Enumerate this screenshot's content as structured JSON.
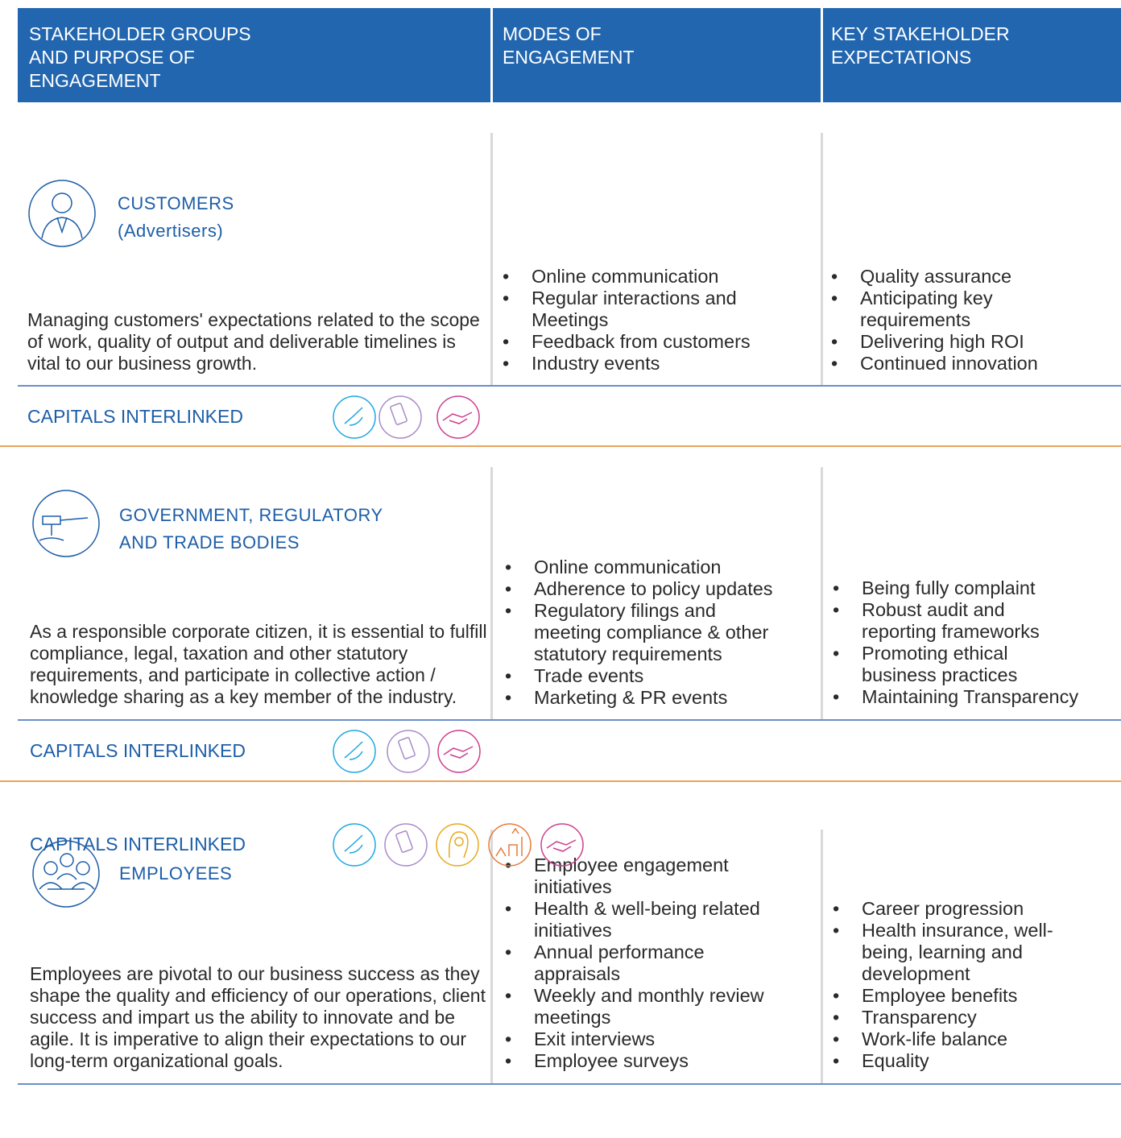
{
  "header": {
    "columns": [
      [
        "STAKEHOLDER GROUPS",
        "AND PURPOSE OF",
        "ENGAGEMENT"
      ],
      [
        "MODES OF",
        "ENGAGEMENT"
      ],
      [
        "KEY STAKEHOLDER",
        "EXPECTATIONS"
      ]
    ]
  },
  "groups": [
    {
      "title_lines": [
        "CUSTOMERS",
        "(Advertisers)"
      ],
      "description": "Managing customers' expectations related to the scope of work, quality of output and deliverable timelines is vital to our business growth.",
      "modes": [
        "Online communication",
        "Regular interactions and Meetings",
        "Feedback from customers",
        "Industry events"
      ],
      "expectations": [
        "Quality assurance",
        "Anticipating key requirements",
        "Delivering high ROI",
        "Continued innovation"
      ],
      "capitals_label": "CAPITALS INTERLINKED"
    },
    {
      "title_lines": [
        "GOVERNMENT, REGULATORY",
        "AND TRADE BODIES"
      ],
      "description": "As a responsible corporate citizen, it is essential to fulfill compliance, legal, taxation and other statutory requirements, and participate in collective action / knowledge sharing as a key member of the industry.",
      "modes": [
        "Online communication",
        "Adherence to policy updates",
        "Regulatory filings and meeting compliance & other statutory requirements",
        "Trade events",
        "Marketing & PR events"
      ],
      "expectations": [
        "Being fully complaint",
        "Robust audit and reporting frameworks",
        "Promoting ethical business practices",
        "Maintaining Transparency"
      ],
      "capitals_label": "CAPITALS INTERLINKED"
    },
    {
      "title_lines": [
        "EMPLOYEES"
      ],
      "description": "Employees are pivotal to our business success as they shape the quality and efficiency of our operations, client success and impart us the ability to innovate and be agile. It is imperative to align their expectations to our long-term organizational goals.",
      "modes": [
        "Employee engagement initiatives",
        "Health & well-being related initiatives",
        "Annual performance appraisals",
        "Weekly and monthly review meetings",
        "Exit interviews",
        "Employee surveys"
      ],
      "expectations": [
        "Career progression",
        "Health insurance, well-being, learning and development",
        "Employee benefits",
        "Transparency",
        "Work-life balance",
        "Equality"
      ],
      "capitals_label": "CAPITALS INTERLINKED"
    }
  ]
}
